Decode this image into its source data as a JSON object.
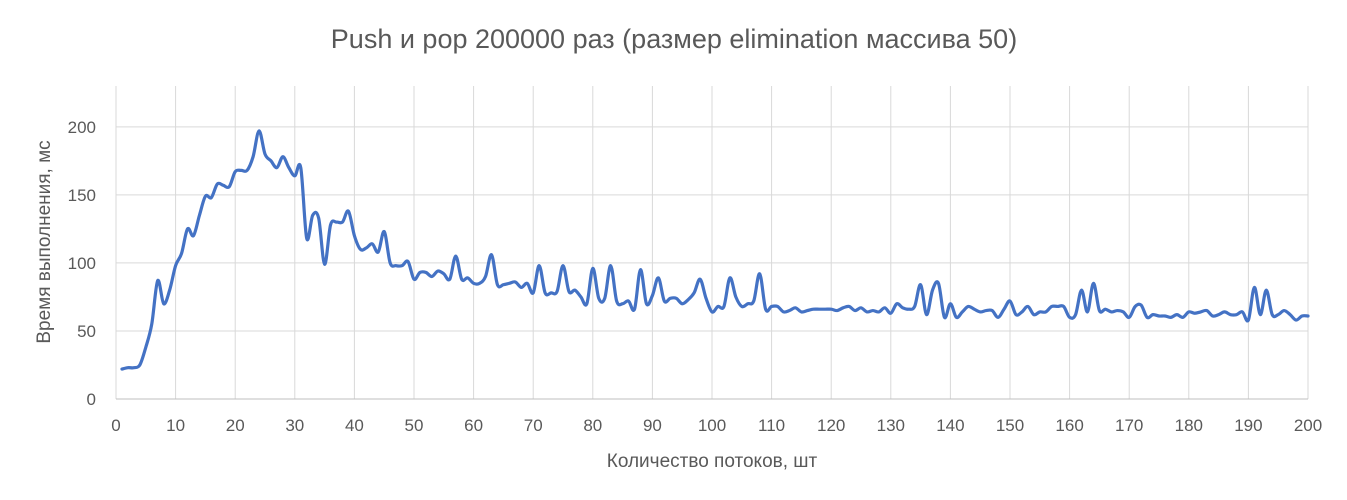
{
  "chart_data": {
    "type": "line",
    "title": "Push и pop 200000 раз (размер elimination массива 50)",
    "xlabel": "Количество потоков, шт",
    "ylabel": "Время выполнения, мс",
    "xlim": [
      0,
      200
    ],
    "ylim": [
      0,
      230
    ],
    "x_ticks": [
      0,
      10,
      20,
      30,
      40,
      50,
      60,
      70,
      80,
      90,
      100,
      110,
      120,
      130,
      140,
      150,
      160,
      170,
      180,
      190,
      200
    ],
    "y_ticks": [
      0,
      50,
      100,
      150,
      200
    ],
    "grid": {
      "vertical": true,
      "horizontal": true
    },
    "legend": "none",
    "line_color": "#4472c4",
    "series": [
      {
        "x": [
          1,
          2,
          3,
          4,
          5,
          6,
          7,
          8,
          9,
          10,
          11,
          12,
          13,
          14,
          15,
          16,
          17,
          18,
          19,
          20,
          21,
          22,
          23,
          24,
          25,
          26,
          27,
          28,
          29,
          30,
          31,
          32,
          33,
          34,
          35,
          36,
          37,
          38,
          39,
          40,
          41,
          42,
          43,
          44,
          45,
          46,
          47,
          48,
          49,
          50,
          51,
          52,
          53,
          54,
          55,
          56,
          57,
          58,
          59,
          60,
          61,
          62,
          63,
          64,
          65,
          66,
          67,
          68,
          69,
          70,
          71,
          72,
          73,
          74,
          75,
          76,
          77,
          78,
          79,
          80,
          81,
          82,
          83,
          84,
          85,
          86,
          87,
          88,
          89,
          90,
          91,
          92,
          93,
          94,
          95,
          96,
          97,
          98,
          99,
          100,
          101,
          102,
          103,
          104,
          105,
          106,
          107,
          108,
          109,
          110,
          111,
          112,
          113,
          114,
          115,
          116,
          117,
          118,
          119,
          120,
          121,
          122,
          123,
          124,
          125,
          126,
          127,
          128,
          129,
          130,
          131,
          132,
          133,
          134,
          135,
          136,
          137,
          138,
          139,
          140,
          141,
          142,
          143,
          144,
          145,
          146,
          147,
          148,
          149,
          150,
          151,
          152,
          153,
          154,
          155,
          156,
          157,
          158,
          159,
          160,
          161,
          162,
          163,
          164,
          165,
          166,
          167,
          168,
          169,
          170,
          171,
          172,
          173,
          174,
          175,
          176,
          177,
          178,
          179,
          180,
          181,
          182,
          183,
          184,
          185,
          186,
          187,
          188,
          189,
          190,
          191,
          192,
          193,
          194,
          195,
          196,
          197,
          198,
          199,
          200
        ],
        "values": [
          22,
          23,
          23,
          25,
          38,
          55,
          87,
          70,
          80,
          98,
          107,
          125,
          120,
          135,
          149,
          148,
          158,
          157,
          156,
          167,
          168,
          168,
          178,
          197,
          180,
          175,
          170,
          178,
          170,
          164,
          170,
          118,
          135,
          133,
          99,
          128,
          130,
          130,
          138,
          120,
          110,
          111,
          114,
          108,
          123,
          100,
          98,
          98,
          101,
          88,
          93,
          93,
          90,
          94,
          92,
          88,
          105,
          88,
          89,
          85,
          85,
          90,
          106,
          84,
          84,
          85,
          86,
          82,
          85,
          78,
          98,
          78,
          78,
          79,
          98,
          79,
          80,
          75,
          70,
          96,
          74,
          74,
          98,
          72,
          70,
          72,
          66,
          95,
          70,
          76,
          89,
          72,
          74,
          74,
          70,
          73,
          78,
          88,
          74,
          64,
          68,
          68,
          89,
          75,
          68,
          70,
          72,
          92,
          66,
          68,
          68,
          64,
          65,
          67,
          64,
          65,
          66,
          66,
          66,
          66,
          65,
          67,
          68,
          65,
          67,
          64,
          65,
          64,
          67,
          63,
          70,
          67,
          66,
          68,
          84,
          62,
          80,
          85,
          60,
          70,
          60,
          64,
          68,
          66,
          64,
          65,
          65,
          60,
          66,
          72,
          62,
          64,
          68,
          62,
          64,
          64,
          68,
          68,
          68,
          60,
          62,
          80,
          64,
          85,
          65,
          66,
          64,
          65,
          64,
          60,
          68,
          69,
          60,
          62,
          61,
          61,
          60,
          62,
          60,
          64,
          63,
          64,
          65,
          61,
          62,
          64,
          62,
          62,
          64,
          58,
          82,
          62,
          80,
          62,
          62,
          65,
          62,
          58,
          61,
          61
        ]
      }
    ]
  }
}
